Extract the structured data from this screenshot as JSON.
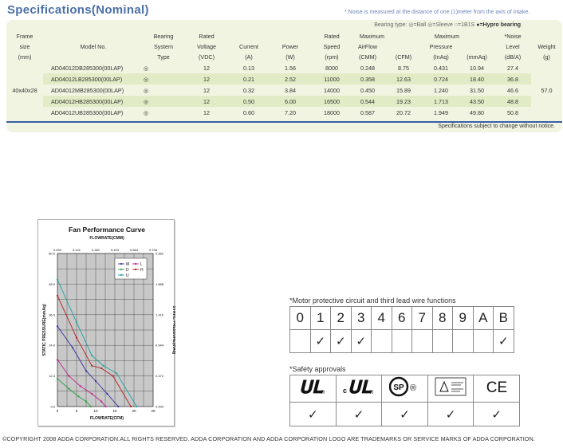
{
  "header": {
    "title": "Specifications(Nominal)",
    "noise_note": "*:Noise is measured at the distance of one (1)meter from the axis of intake."
  },
  "bearing_legend": {
    "prefix": "Bearing type:",
    "items": [
      {
        "symbol": "◎",
        "label": "=Ball"
      },
      {
        "symbol": "◎",
        "label": "=Sleeve"
      },
      {
        "symbol": "○",
        "label": "=1B1S"
      },
      {
        "symbol": "●",
        "label": "=Hypro bearing",
        "bold": true
      }
    ]
  },
  "spec_table": {
    "headers": [
      [
        "Frame",
        "",
        "Bearing",
        "Rated",
        "",
        "",
        "Rated",
        "Maximum",
        "",
        "Maximum",
        "",
        "*Noise",
        ""
      ],
      [
        "size",
        "Model No.",
        "System",
        "Voltage",
        "Current",
        "Power",
        "Speed",
        "AirFlow",
        "",
        "Pressure",
        "",
        "Level",
        "Weight"
      ],
      [
        "(mm)",
        "",
        "Type",
        "(VDC)",
        "(A)",
        "(W)",
        "(rpm)",
        "(CMM)",
        "(CFM)",
        "(InAq)",
        "(mmAq)",
        "(dB/A)",
        "(g)"
      ]
    ],
    "frame_size": "40x40x28",
    "weight": "57.0",
    "rows": [
      {
        "model": "AD04012DB285300(00LAP)",
        "bearing": "◎",
        "voltage": "12",
        "current": "0.13",
        "power": "1.56",
        "speed": "8000",
        "cmm": "0.248",
        "cfm": "8.75",
        "inaq": "0.431",
        "mmaq": "10.94",
        "noise": "27.4"
      },
      {
        "model": "AD04012LB285300(00LAP)",
        "bearing": "◎",
        "voltage": "12",
        "current": "0.21",
        "power": "2.52",
        "speed": "11000",
        "cmm": "0.358",
        "cfm": "12.63",
        "inaq": "0.724",
        "mmaq": "18.40",
        "noise": "36.8"
      },
      {
        "model": "AD04012MB285300(00LAP)",
        "bearing": "◎",
        "voltage": "12",
        "current": "0.32",
        "power": "3.84",
        "speed": "14000",
        "cmm": "0.450",
        "cfm": "15.89",
        "inaq": "1.240",
        "mmaq": "31.50",
        "noise": "46.6"
      },
      {
        "model": "AD04012HB285300(00LAP)",
        "bearing": "◎",
        "voltage": "12",
        "current": "0.50",
        "power": "6.00",
        "speed": "16500",
        "cmm": "0.544",
        "cfm": "19.23",
        "inaq": "1.713",
        "mmaq": "43.50",
        "noise": "48.8"
      },
      {
        "model": "AD04012UB285300(00LAP)",
        "bearing": "◎",
        "voltage": "12",
        "current": "0.60",
        "power": "7.20",
        "speed": "18000",
        "cmm": "0.587",
        "cfm": "20.72",
        "inaq": "1.949",
        "mmaq": "49.80",
        "noise": "50.8"
      }
    ],
    "footnote": "Specifications subject to change without notice."
  },
  "chart_data": {
    "type": "line",
    "title": "Fan Performance Curve",
    "top_axis_label": "FLOWRATE(CMM)",
    "top_ticks": [
      "0.000",
      "0.141",
      "0.282",
      "0.423",
      "0.564",
      "0.705"
    ],
    "xlabel": "FLOWRATE(CFM)",
    "x_ticks": [
      "0",
      "5",
      "10",
      "15",
      "20",
      "25"
    ],
    "xlim": [
      0,
      25
    ],
    "ylabel": "STATIC PRESSURE(mmAq)",
    "y_ticks": [
      "0.0",
      "12.0",
      "24.0",
      "36.0",
      "48.0",
      "60.0"
    ],
    "ylim": [
      0,
      60
    ],
    "right_label": "STATIC PRESSURE(InAq)",
    "right_ticks": [
      "0.000",
      "0.472",
      "0.944",
      "1.416",
      "1.888",
      "2.360"
    ],
    "grid": true,
    "legend_position": "top-right",
    "series": [
      {
        "name": "M",
        "color": "#2e2e9e",
        "x": [
          0,
          4,
          7.5,
          10,
          13,
          15.9
        ],
        "y": [
          31.5,
          23,
          14,
          10,
          5,
          0
        ]
      },
      {
        "name": "L",
        "color": "#c0208a",
        "x": [
          0,
          3,
          6,
          9,
          11.5,
          12.6
        ],
        "y": [
          18.4,
          12,
          8,
          5,
          2,
          0
        ]
      },
      {
        "name": "D",
        "color": "#2aa04a",
        "x": [
          0,
          3,
          5.5,
          7.5,
          8.75
        ],
        "y": [
          10.9,
          7,
          4,
          2,
          0
        ]
      },
      {
        "name": "H",
        "color": "#b02020",
        "x": [
          0,
          5,
          9,
          11.5,
          14.5,
          19.2
        ],
        "y": [
          43.5,
          27,
          16,
          15,
          12,
          0
        ]
      },
      {
        "name": "U",
        "color": "#20a0a0",
        "x": [
          0,
          5,
          9,
          12,
          15.5,
          20.7
        ],
        "y": [
          49.8,
          33,
          20,
          16,
          13,
          0
        ]
      }
    ]
  },
  "motor": {
    "title": "*Motor protective circuit and third lead wire functions",
    "codes": [
      "0",
      "1",
      "2",
      "3",
      "4",
      "6",
      "7",
      "8",
      "9",
      "A",
      "B"
    ],
    "checks": [
      "",
      "✓",
      "✓",
      "✓",
      "",
      "",
      "",
      "",
      "",
      "",
      "✓"
    ]
  },
  "safety": {
    "title": "*Safety approvals",
    "logos": [
      "UL",
      "cUL",
      "CSA",
      "TUV",
      "CE"
    ],
    "checks": [
      "✓",
      "✓",
      "✓",
      "✓",
      "✓"
    ],
    "ul_mark": "R",
    "cul_prefix": "c",
    "cul_mark": "R",
    "csa_mark": "SP",
    "registered": "®",
    "ce_mark": "CE"
  },
  "footer": {
    "copyright": "©COPYRIGHT 2008 ADDA CORPORATION.ALL RIGHTS RESERVED. ADDA CORPORATION AND ADDA  CORPORATION LOGO ARE TRADEMARKS OR SERVICE MARKS OF ADDA CORPORATION."
  }
}
